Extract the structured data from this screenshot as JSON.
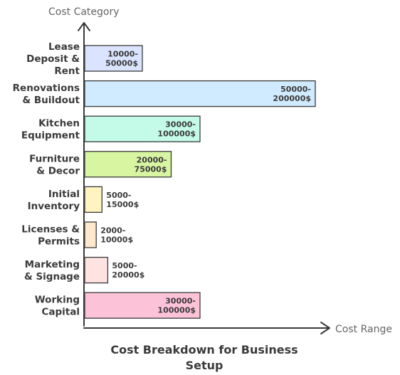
{
  "chart_data": {
    "type": "bar",
    "orientation": "horizontal",
    "title": "Cost Breakdown for Business Setup",
    "ylabel": "Cost Category",
    "xlabel": "Cost Range",
    "grid": false,
    "legend": "none",
    "categories": [
      "Lease Deposit & Rent",
      "Renovations & Buildout",
      "Kitchen Equipment",
      "Furniture & Decor",
      "Initial Inventory",
      "Licenses & Permits",
      "Marketing & Signage",
      "Working Capital"
    ],
    "category_lines": [
      [
        "Lease",
        "Deposit &",
        "Rent"
      ],
      [
        "Renovations",
        "& Buildout"
      ],
      [
        "Kitchen",
        "Equipment"
      ],
      [
        "Furniture",
        "& Decor"
      ],
      [
        "Initial",
        "Inventory"
      ],
      [
        "Licenses &",
        "Permits"
      ],
      [
        "Marketing",
        "& Signage"
      ],
      [
        "Working",
        "Capital"
      ]
    ],
    "values": [
      50000,
      200000,
      100000,
      75000,
      15000,
      10000,
      20000,
      100000
    ],
    "ranges": [
      {
        "low": 10000,
        "high": 50000
      },
      {
        "low": 50000,
        "high": 200000
      },
      {
        "low": 30000,
        "high": 100000
      },
      {
        "low": 20000,
        "high": 75000
      },
      {
        "low": 5000,
        "high": 15000
      },
      {
        "low": 2000,
        "high": 10000
      },
      {
        "low": 5000,
        "high": 20000
      },
      {
        "low": 30000,
        "high": 100000
      }
    ],
    "data_label_lines": [
      [
        "10000-",
        "50000$"
      ],
      [
        "50000-",
        "200000$"
      ],
      [
        "30000-",
        "100000$"
      ],
      [
        "20000-",
        "75000$"
      ],
      [
        "5000-",
        "15000$"
      ],
      [
        "2000-",
        "10000$"
      ],
      [
        "5000-",
        "20000$"
      ],
      [
        "30000-",
        "100000$"
      ]
    ],
    "colors": [
      "#dbe4ff",
      "#d0ebff",
      "#c3fae8",
      "#d8f5a2",
      "#fff3bf",
      "#ffe8cc",
      "#ffe3e3",
      "#fcc2d7"
    ],
    "stroke_color": "#3a3a3a"
  }
}
